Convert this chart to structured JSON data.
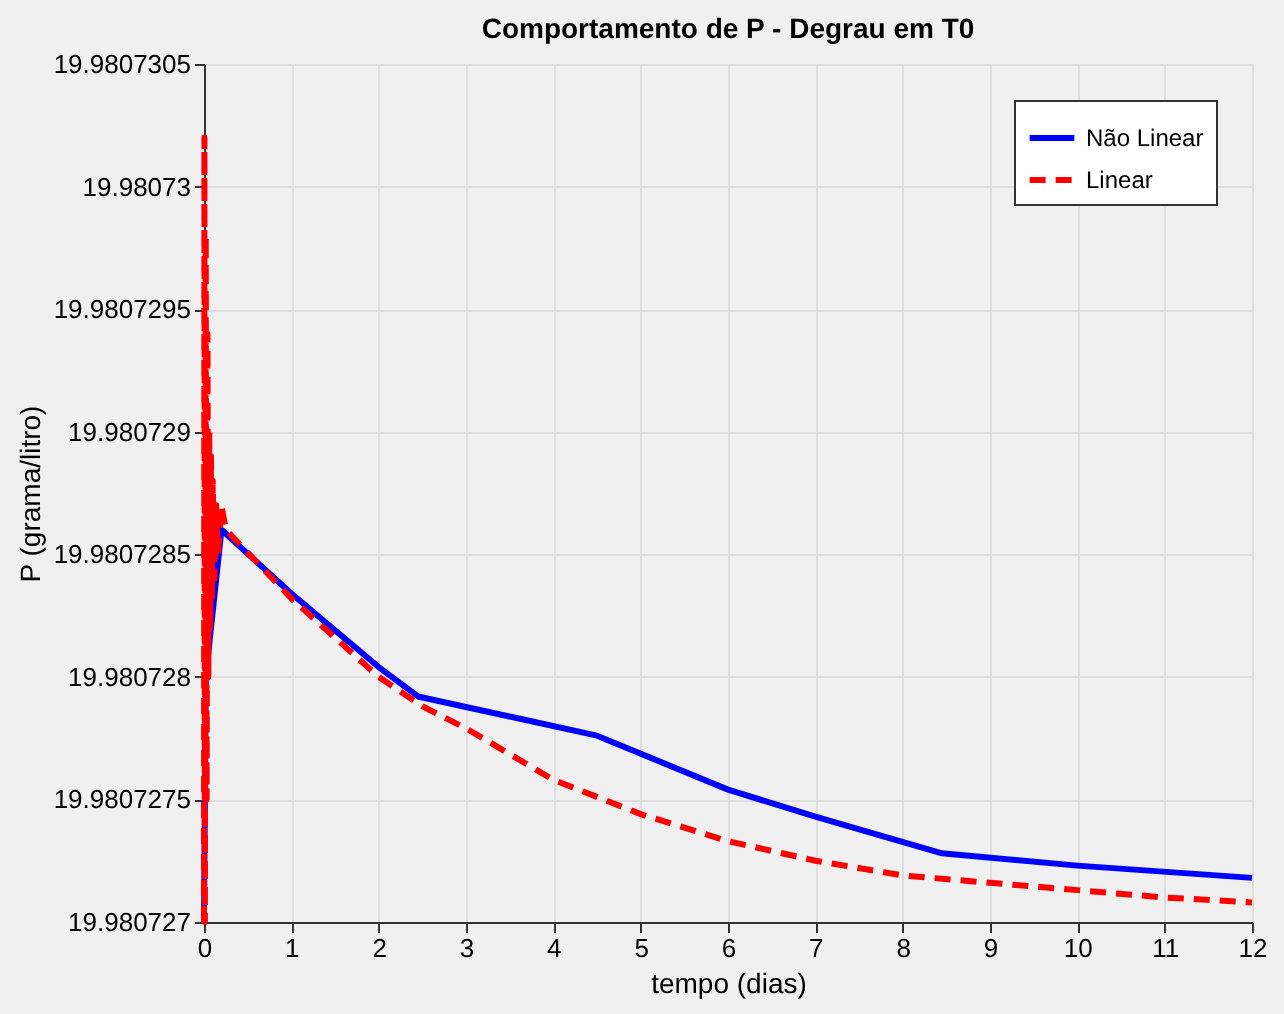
{
  "chart_data": {
    "type": "line",
    "title": "Comportamento de P - Degrau em T0",
    "xlabel": "tempo (dias)",
    "ylabel": "P (grama/litro)",
    "xlim": [
      0,
      12
    ],
    "xticks": [
      0,
      1,
      2,
      3,
      4,
      5,
      6,
      7,
      8,
      9,
      10,
      11,
      12
    ],
    "ylim": [
      19.980727,
      19.9807305
    ],
    "yticks": [
      19.980727,
      19.9807275,
      19.980728,
      19.9807285,
      19.980729,
      19.9807295,
      19.98073,
      19.9807305
    ],
    "grid": true,
    "legend": "top right",
    "marker": "none",
    "series": [
      {
        "name": "Não Linear",
        "color": "#0000ff",
        "line_style": "solid",
        "x": [
          0,
          0.02,
          0.2,
          1,
          2,
          2.45,
          4.5,
          6,
          7,
          8.45,
          10,
          12
        ],
        "values": [
          19.980727,
          19.980728,
          19.9807286,
          19.98072834,
          19.98072804,
          19.98072792,
          19.98072776,
          19.98072754,
          19.98072743,
          19.98072728,
          19.98072723,
          19.98072718
        ]
      },
      {
        "name": "Linear",
        "color": "#ff0000",
        "line_style": "dashed",
        "x": [
          0,
          0.005,
          0.01,
          0.02,
          0.03,
          0.04,
          0.05,
          0.06,
          0.07,
          0.08,
          0.09,
          0.1,
          0.12,
          0.14,
          0.16,
          0.2,
          0.25,
          1,
          2,
          2.5,
          3,
          4,
          5,
          6,
          7,
          8,
          9,
          10,
          11,
          12
        ],
        "values": [
          19.980727,
          19.9807302,
          19.980727,
          19.9807298,
          19.9807275,
          19.9807294,
          19.980728,
          19.980729,
          19.9807282,
          19.9807289,
          19.9807283,
          19.9807288,
          19.9807284,
          19.9807287,
          19.9807285,
          19.9807287,
          19.9807286,
          19.98072832,
          19.980728,
          19.98072788,
          19.98072779,
          19.98072758,
          19.98072744,
          19.98072733,
          19.98072725,
          19.98072719,
          19.98072716,
          19.98072713,
          19.9807271,
          19.98072708
        ]
      }
    ]
  }
}
